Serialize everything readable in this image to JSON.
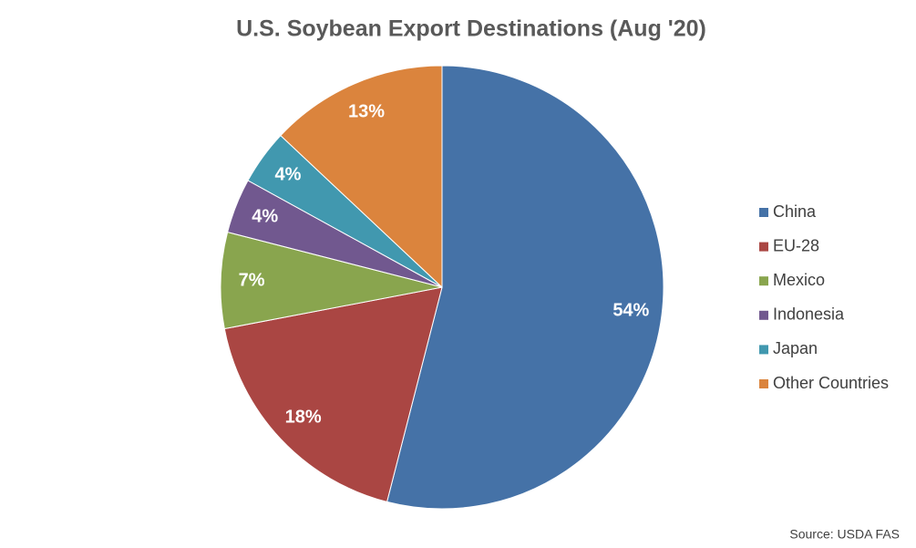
{
  "chart_data": {
    "type": "pie",
    "title": "U.S. Soybean Export Destinations (Aug '20)",
    "categories": [
      "China",
      "EU-28",
      "Mexico",
      "Indonesia",
      "Japan",
      "Other Countries"
    ],
    "values": [
      54,
      18,
      7,
      4,
      4,
      13
    ],
    "value_labels": [
      "54%",
      "18%",
      "7%",
      "4%",
      "4%",
      "13%"
    ],
    "colors": [
      "#4572a7",
      "#aa4643",
      "#89a54e",
      "#71588f",
      "#4198af",
      "#db843d"
    ],
    "legend": "right",
    "source": "Source: USDA FAS"
  }
}
